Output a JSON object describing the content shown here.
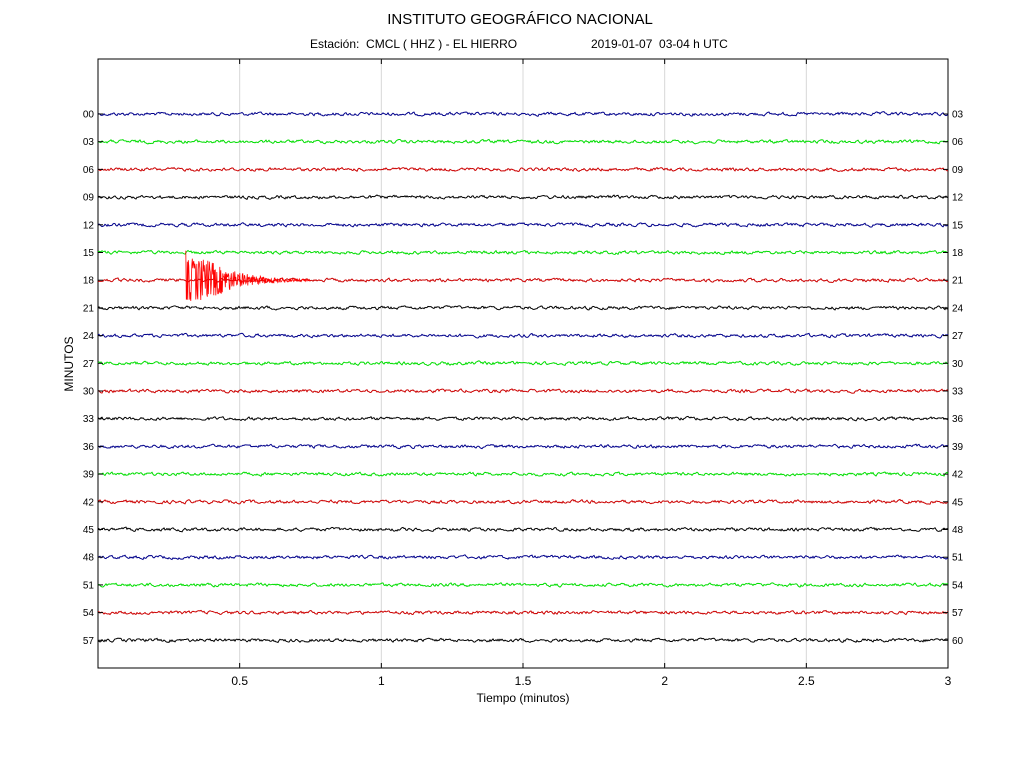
{
  "header": {
    "title": "INSTITUTO GEOGRÁFICO NACIONAL",
    "station": "Estación:  CMCL ( HHZ ) - EL HIERRO",
    "date": "2019-01-07  03-04 h UTC"
  },
  "chart_data": {
    "type": "line",
    "title": "INSTITUTO GEOGRÁFICO NACIONAL",
    "xlabel": "Tiempo (minutos)",
    "ylabel": "MINUTOS",
    "xlim": [
      0,
      3
    ],
    "x_ticks": [
      0.5,
      1,
      1.5,
      2,
      2.5,
      3
    ],
    "x_tick_labels": [
      "0.5",
      "1",
      "1.5",
      "2",
      "2.5",
      "3"
    ],
    "grid": true,
    "left_labels": [
      "00",
      "03",
      "06",
      "09",
      "12",
      "15",
      "18",
      "21",
      "24",
      "27",
      "30",
      "33",
      "36",
      "39",
      "42",
      "45",
      "48",
      "51",
      "54",
      "57"
    ],
    "right_labels": [
      "03",
      "06",
      "09",
      "12",
      "15",
      "18",
      "21",
      "24",
      "27",
      "30",
      "33",
      "36",
      "39",
      "42",
      "45",
      "48",
      "51",
      "54",
      "57",
      "60"
    ],
    "trace_colors": [
      "#00008b",
      "#00dd00",
      "#cc0000",
      "#000000"
    ],
    "event": {
      "trace_label": "18",
      "color": "#ff0000",
      "onset_min": 0.31,
      "peak_min": 0.38,
      "coda_end_min": 0.75,
      "amplitude_scale": 1.0
    }
  }
}
